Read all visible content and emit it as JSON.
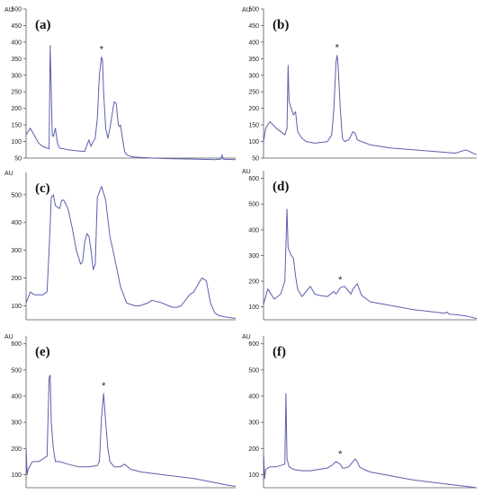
{
  "chart_data": [
    {
      "type": "line",
      "panel_label": "(a)",
      "y_unit": "AU",
      "y_ticks": [
        50,
        100,
        150,
        200,
        250,
        300,
        350,
        400,
        450,
        500
      ],
      "ylim": [
        50,
        500
      ],
      "x": [
        0,
        0.02,
        0.04,
        0.06,
        0.08,
        0.1,
        0.11,
        0.115,
        0.12,
        0.125,
        0.13,
        0.14,
        0.145,
        0.15,
        0.16,
        0.18,
        0.2,
        0.24,
        0.28,
        0.3,
        0.31,
        0.32,
        0.33,
        0.34,
        0.35,
        0.36,
        0.365,
        0.37,
        0.38,
        0.39,
        0.4,
        0.42,
        0.43,
        0.44,
        0.445,
        0.45,
        0.46,
        0.47,
        0.48,
        0.5,
        0.52,
        0.6,
        0.7,
        0.8,
        0.9,
        0.93,
        0.935,
        0.94,
        0.96,
        1.0
      ],
      "y": [
        120,
        140,
        118,
        95,
        85,
        80,
        78,
        390,
        250,
        120,
        115,
        140,
        115,
        95,
        80,
        78,
        75,
        72,
        70,
        105,
        85,
        100,
        110,
        170,
        300,
        355,
        345,
        250,
        140,
        110,
        140,
        220,
        215,
        150,
        145,
        150,
        110,
        70,
        60,
        55,
        53,
        50,
        48,
        47,
        45,
        47,
        60,
        47,
        46,
        45
      ],
      "annotations": [
        {
          "text": "*",
          "x": 0.36
        }
      ]
    },
    {
      "type": "line",
      "panel_label": "(b)",
      "y_unit": "AU",
      "y_ticks": [
        50,
        100,
        150,
        200,
        250,
        300,
        350,
        400,
        450,
        500
      ],
      "ylim": [
        50,
        500
      ],
      "x": [
        0,
        0.01,
        0.03,
        0.06,
        0.1,
        0.11,
        0.115,
        0.12,
        0.13,
        0.14,
        0.15,
        0.16,
        0.18,
        0.2,
        0.24,
        0.28,
        0.3,
        0.32,
        0.33,
        0.34,
        0.345,
        0.35,
        0.36,
        0.37,
        0.38,
        0.4,
        0.42,
        0.43,
        0.44,
        0.46,
        0.48,
        0.5,
        0.6,
        0.7,
        0.8,
        0.9,
        0.95,
        1.0
      ],
      "y": [
        100,
        140,
        160,
        140,
        120,
        140,
        330,
        220,
        200,
        180,
        190,
        130,
        110,
        100,
        95,
        98,
        100,
        120,
        200,
        340,
        360,
        330,
        200,
        110,
        100,
        105,
        130,
        125,
        105,
        100,
        95,
        90,
        80,
        75,
        70,
        65,
        75,
        60
      ],
      "annotations": [
        {
          "text": "*",
          "x": 0.345
        }
      ]
    },
    {
      "type": "line",
      "panel_label": "(c)",
      "y_unit": "AU",
      "y_ticks": [
        100,
        200,
        300,
        400,
        500
      ],
      "ylim": [
        50,
        580
      ],
      "x": [
        0,
        0.02,
        0.04,
        0.08,
        0.1,
        0.11,
        0.12,
        0.13,
        0.14,
        0.16,
        0.17,
        0.18,
        0.2,
        0.22,
        0.24,
        0.26,
        0.27,
        0.28,
        0.29,
        0.3,
        0.31,
        0.32,
        0.33,
        0.34,
        0.36,
        0.38,
        0.4,
        0.42,
        0.45,
        0.48,
        0.5,
        0.52,
        0.54,
        0.56,
        0.58,
        0.6,
        0.65,
        0.68,
        0.7,
        0.72,
        0.74,
        0.78,
        0.8,
        0.83,
        0.84,
        0.85,
        0.86,
        0.88,
        0.9,
        0.92,
        0.95,
        1.0
      ],
      "y": [
        110,
        150,
        140,
        140,
        150,
        300,
        490,
        500,
        460,
        450,
        480,
        480,
        450,
        380,
        300,
        250,
        260,
        330,
        360,
        350,
        300,
        230,
        250,
        490,
        530,
        480,
        350,
        280,
        170,
        110,
        105,
        100,
        100,
        105,
        110,
        120,
        110,
        100,
        95,
        95,
        100,
        140,
        150,
        190,
        200,
        195,
        190,
        110,
        75,
        65,
        60,
        55
      ],
      "annotations": []
    },
    {
      "type": "line",
      "panel_label": "(d)",
      "y_unit": "AU",
      "y_ticks": [
        100,
        200,
        300,
        400,
        500,
        600
      ],
      "ylim": [
        50,
        630
      ],
      "x": [
        0,
        0.01,
        0.02,
        0.05,
        0.08,
        0.1,
        0.11,
        0.115,
        0.12,
        0.13,
        0.14,
        0.15,
        0.16,
        0.18,
        0.2,
        0.22,
        0.24,
        0.26,
        0.3,
        0.33,
        0.34,
        0.35,
        0.36,
        0.38,
        0.4,
        0.41,
        0.42,
        0.43,
        0.44,
        0.46,
        0.5,
        0.6,
        0.7,
        0.8,
        0.85,
        0.86,
        0.87,
        0.9,
        0.95,
        1.0
      ],
      "y": [
        110,
        140,
        170,
        130,
        150,
        200,
        480,
        330,
        320,
        300,
        290,
        220,
        170,
        140,
        160,
        180,
        150,
        145,
        140,
        160,
        150,
        160,
        175,
        180,
        160,
        150,
        170,
        180,
        190,
        145,
        120,
        105,
        90,
        80,
        75,
        80,
        72,
        70,
        65,
        55
      ],
      "annotations": [
        {
          "text": "*",
          "x": 0.36
        }
      ]
    },
    {
      "type": "line",
      "panel_label": "(e)",
      "y_unit": "AU",
      "y_ticks": [
        100,
        200,
        300,
        400,
        500,
        600
      ],
      "ylim": [
        50,
        630
      ],
      "x": [
        0,
        0.005,
        0.01,
        0.03,
        0.06,
        0.1,
        0.11,
        0.115,
        0.12,
        0.13,
        0.14,
        0.16,
        0.2,
        0.25,
        0.3,
        0.34,
        0.35,
        0.36,
        0.37,
        0.38,
        0.39,
        0.4,
        0.42,
        0.45,
        0.47,
        0.5,
        0.55,
        0.6,
        0.7,
        0.8,
        0.9,
        0.96,
        1.0
      ],
      "y": [
        200,
        100,
        120,
        150,
        150,
        170,
        470,
        480,
        300,
        200,
        150,
        150,
        140,
        130,
        130,
        135,
        150,
        320,
        410,
        300,
        200,
        150,
        130,
        130,
        140,
        120,
        110,
        105,
        95,
        85,
        70,
        60,
        55
      ],
      "annotations": [
        {
          "text": "*",
          "x": 0.37
        }
      ]
    },
    {
      "type": "line",
      "panel_label": "(f)",
      "y_unit": "AU",
      "y_ticks": [
        100,
        200,
        300,
        400,
        500,
        600
      ],
      "ylim": [
        50,
        630
      ],
      "x": [
        0,
        0.005,
        0.01,
        0.03,
        0.06,
        0.1,
        0.105,
        0.11,
        0.12,
        0.14,
        0.18,
        0.22,
        0.26,
        0.3,
        0.32,
        0.34,
        0.36,
        0.37,
        0.38,
        0.4,
        0.42,
        0.43,
        0.44,
        0.45,
        0.47,
        0.5,
        0.6,
        0.7,
        0.8,
        0.9,
        0.95,
        1.0
      ],
      "y": [
        180,
        85,
        120,
        130,
        130,
        140,
        410,
        160,
        130,
        120,
        115,
        115,
        120,
        125,
        135,
        150,
        140,
        125,
        125,
        130,
        150,
        160,
        150,
        130,
        120,
        110,
        95,
        80,
        70,
        60,
        55,
        50
      ],
      "annotations": [
        {
          "text": "*",
          "x": 0.36
        }
      ]
    }
  ],
  "colors": {
    "trace": "#5b5fae",
    "axis": "#555555",
    "text": "#222222"
  }
}
